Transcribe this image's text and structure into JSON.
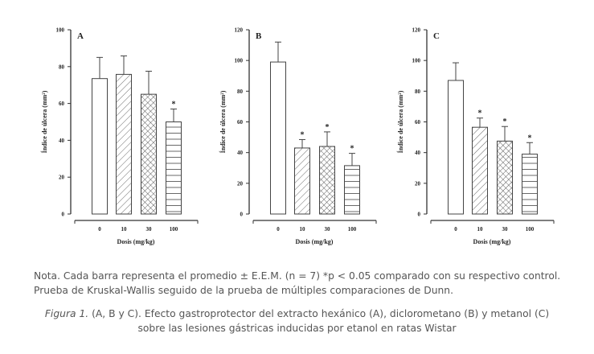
{
  "chart_data": [
    {
      "type": "bar",
      "panel_label": "A",
      "ylabel": "Índice de úlcera (mm²)",
      "xlabel": "Dosis (mg/kg)",
      "ylim": [
        0,
        100
      ],
      "yticks": [
        0,
        20,
        40,
        60,
        80,
        100
      ],
      "categories": [
        "0",
        "10",
        "30",
        "100"
      ],
      "values": [
        73.5,
        75.8,
        65,
        50
      ],
      "errors": [
        11.5,
        10,
        12.5,
        7
      ],
      "significant": [
        false,
        false,
        false,
        true
      ],
      "patterns": [
        "none",
        "diagonal",
        "crosshatch",
        "horizontal"
      ]
    },
    {
      "type": "bar",
      "panel_label": "B",
      "ylabel": "Índice de úlcera (mm²)",
      "xlabel": "Dosis (mg/kg)",
      "ylim": [
        0,
        120
      ],
      "yticks": [
        0,
        20,
        40,
        60,
        80,
        100,
        120
      ],
      "categories": [
        "0",
        "10",
        "30",
        "100"
      ],
      "values": [
        99,
        43,
        44,
        31.5
      ],
      "errors": [
        13,
        5.5,
        9.5,
        8
      ],
      "significant": [
        false,
        true,
        true,
        true
      ],
      "patterns": [
        "none",
        "diagonal",
        "crosshatch",
        "horizontal"
      ]
    },
    {
      "type": "bar",
      "panel_label": "C",
      "ylabel": "Índice de úlcera (mm²)",
      "xlabel": "Dosis (mg/kg)",
      "ylim": [
        0,
        120
      ],
      "yticks": [
        0,
        20,
        40,
        60,
        80,
        100,
        120
      ],
      "categories": [
        "0",
        "10",
        "30",
        "100"
      ],
      "values": [
        87,
        56.5,
        47.5,
        39
      ],
      "errors": [
        11.5,
        6,
        9.5,
        7.5
      ],
      "significant": [
        false,
        true,
        true,
        true
      ],
      "patterns": [
        "none",
        "diagonal",
        "crosshatch",
        "horizontal"
      ]
    }
  ],
  "significance_marker": "*",
  "note": {
    "line1": "Nota. Cada barra representa el promedio ± E.E.M. (n = 7) *p < 0.05 comparado con su respectivo control.",
    "line2": "Prueba de Kruskal-Wallis seguido de la prueba de múltiples comparaciones de Dunn."
  },
  "caption": {
    "label": "Figura 1.",
    "line1": " (A, B y C). Efecto gastroprotector del extracto hexánico (A), diclorometano (B) y metanol (C)",
    "line2": "sobre las lesiones gástricas inducidas por etanol en ratas Wistar"
  }
}
